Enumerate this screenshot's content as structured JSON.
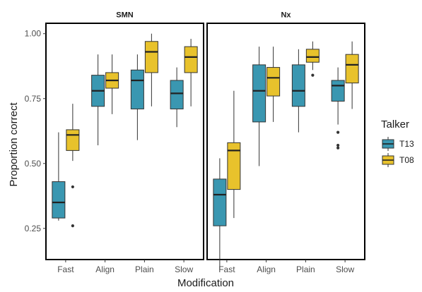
{
  "chart_data": {
    "type": "boxplot",
    "facets": [
      "SMN",
      "Nx"
    ],
    "categories": [
      "Fast",
      "Align",
      "Plain",
      "Slow"
    ],
    "xlabel": "Modification",
    "ylabel": "Proportion correct",
    "ylim": [
      0.13,
      1.04
    ],
    "yticks": [
      0.25,
      0.5,
      0.75,
      1.0
    ],
    "ytick_labels": [
      "0.25",
      "0.50",
      "0.75",
      "1.00"
    ],
    "grid": false,
    "legend": {
      "title": "Talker",
      "position": "right",
      "entries": [
        {
          "name": "T13",
          "color": "#3a97b1"
        },
        {
          "name": "T08",
          "color": "#e8c22c"
        }
      ]
    },
    "series": [
      {
        "name": "T13",
        "color": "#3a97b1",
        "data": {
          "SMN": [
            {
              "category": "Fast",
              "min": 0.28,
              "q1": 0.29,
              "median": 0.35,
              "q3": 0.43,
              "max": 0.62,
              "outliers": []
            },
            {
              "category": "Align",
              "min": 0.57,
              "q1": 0.72,
              "median": 0.78,
              "q3": 0.84,
              "max": 0.92,
              "outliers": []
            },
            {
              "category": "Plain",
              "min": 0.59,
              "q1": 0.71,
              "median": 0.82,
              "q3": 0.86,
              "max": 0.92,
              "outliers": []
            },
            {
              "category": "Slow",
              "min": 0.64,
              "q1": 0.71,
              "median": 0.77,
              "q3": 0.82,
              "max": 0.87,
              "outliers": []
            }
          ],
          "Nx": [
            {
              "category": "Fast",
              "min": 0.09,
              "q1": 0.26,
              "median": 0.38,
              "q3": 0.44,
              "max": 0.52,
              "outliers": []
            },
            {
              "category": "Align",
              "min": 0.49,
              "q1": 0.66,
              "median": 0.78,
              "q3": 0.88,
              "max": 0.95,
              "outliers": []
            },
            {
              "category": "Plain",
              "min": 0.62,
              "q1": 0.72,
              "median": 0.78,
              "q3": 0.88,
              "max": 0.94,
              "outliers": []
            },
            {
              "category": "Slow",
              "min": 0.65,
              "q1": 0.74,
              "median": 0.8,
              "q3": 0.82,
              "max": 0.87,
              "outliers": [
                0.62,
                0.57,
                0.56
              ]
            }
          ]
        }
      },
      {
        "name": "T08",
        "color": "#e8c22c",
        "data": {
          "SMN": [
            {
              "category": "Fast",
              "min": 0.51,
              "q1": 0.55,
              "median": 0.61,
              "q3": 0.63,
              "max": 0.73,
              "outliers": [
                0.41,
                0.26
              ]
            },
            {
              "category": "Align",
              "min": 0.69,
              "q1": 0.79,
              "median": 0.82,
              "q3": 0.85,
              "max": 0.92,
              "outliers": []
            },
            {
              "category": "Plain",
              "min": 0.72,
              "q1": 0.85,
              "median": 0.93,
              "q3": 0.97,
              "max": 1.0,
              "outliers": []
            },
            {
              "category": "Slow",
              "min": 0.72,
              "q1": 0.85,
              "median": 0.91,
              "q3": 0.95,
              "max": 0.98,
              "outliers": []
            }
          ],
          "Nx": [
            {
              "category": "Fast",
              "min": 0.29,
              "q1": 0.4,
              "median": 0.55,
              "q3": 0.58,
              "max": 0.78,
              "outliers": []
            },
            {
              "category": "Align",
              "min": 0.66,
              "q1": 0.76,
              "median": 0.83,
              "q3": 0.87,
              "max": 0.95,
              "outliers": []
            },
            {
              "category": "Plain",
              "min": 0.86,
              "q1": 0.89,
              "median": 0.91,
              "q3": 0.94,
              "max": 0.97,
              "outliers": [
                0.84
              ]
            },
            {
              "category": "Slow",
              "min": 0.71,
              "q1": 0.81,
              "median": 0.88,
              "q3": 0.92,
              "max": 0.97,
              "outliers": []
            }
          ]
        }
      }
    ]
  }
}
